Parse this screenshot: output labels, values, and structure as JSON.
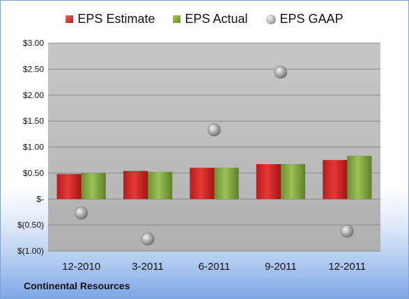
{
  "chart_data": {
    "type": "bar",
    "categories": [
      "12-2010",
      "3-2011",
      "6-2011",
      "9-2011",
      "12-2011"
    ],
    "series": [
      {
        "name": "EPS Estimate",
        "kind": "bar",
        "color": "#c62828",
        "values": [
          0.48,
          0.54,
          0.6,
          0.67,
          0.75
        ]
      },
      {
        "name": "EPS Actual",
        "kind": "bar",
        "color": "#7ea03e",
        "values": [
          0.5,
          0.52,
          0.6,
          0.67,
          0.83
        ]
      },
      {
        "name": "EPS GAAP",
        "kind": "scatter",
        "color": "#9a9a9a",
        "values": [
          -0.27,
          -0.77,
          1.33,
          2.44,
          -0.62
        ]
      }
    ],
    "ylim": [
      -1.0,
      3.0
    ],
    "y_ticks": [
      {
        "value": 3.0,
        "label": "$3.00"
      },
      {
        "value": 2.5,
        "label": "$2.50"
      },
      {
        "value": 2.0,
        "label": "$2.00"
      },
      {
        "value": 1.5,
        "label": "$1.50"
      },
      {
        "value": 1.0,
        "label": "$1.00"
      },
      {
        "value": 0.5,
        "label": "$0.50"
      },
      {
        "value": 0.0,
        "label": "$-"
      },
      {
        "value": -0.5,
        "label": "$(0.50)"
      },
      {
        "value": -1.0,
        "label": "$(1.00)"
      }
    ],
    "grid": true,
    "legend_position": "top"
  },
  "footer": {
    "company": "Continental Resources"
  }
}
